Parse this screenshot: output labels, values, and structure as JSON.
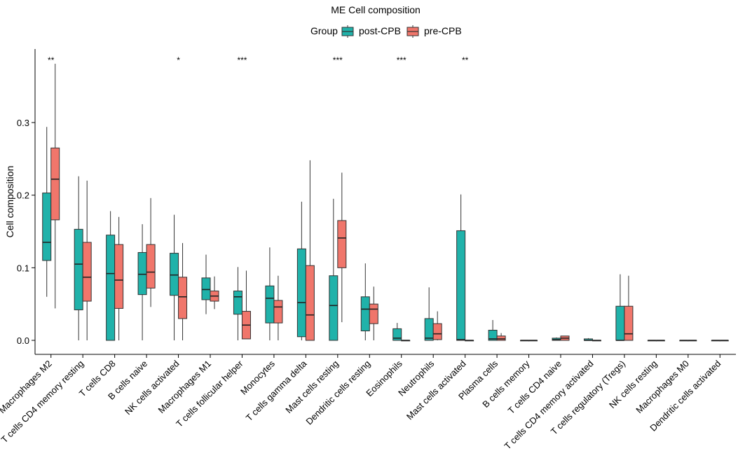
{
  "chart_data": {
    "type": "boxplot",
    "title": "ME Cell composition",
    "xlabel": "",
    "ylabel": "Cell composition",
    "ylim": [
      -0.02,
      0.4
    ],
    "yticks": [
      0.0,
      0.1,
      0.2,
      0.3
    ],
    "ytick_labels": [
      "0.0",
      "0.1",
      "0.2",
      "0.3"
    ],
    "legend": {
      "title": "Group",
      "position": "top",
      "entries": [
        {
          "name": "post-CPB",
          "color": "#20B2AA"
        },
        {
          "name": "pre-CPB",
          "color": "#F0766B"
        }
      ]
    },
    "categories": [
      "Macrophages M2",
      "T cells CD4 memory resting",
      "T cells CD8",
      "B cells naive",
      "NK cells activated",
      "Macrophages M1",
      "T cells follicular helper",
      "Monocytes",
      "T cells gamma delta",
      "Mast cells resting",
      "Dendritic cells resting",
      "Eosinophils",
      "Neutrophils",
      "Mast cells activated",
      "Plasma cells",
      "B cells memory",
      "T cells CD4 naive",
      "T cells CD4 memory activated",
      "T cells regulatory (Tregs)",
      "NK cells resting",
      "Macrophages M0",
      "Dendritic cells activated"
    ],
    "significance": [
      "**",
      "",
      "",
      "",
      "*",
      "",
      "***",
      "",
      "",
      "***",
      "",
      "***",
      "",
      "**",
      "",
      "",
      "",
      "",
      "",
      "",
      "",
      ""
    ],
    "series": [
      {
        "name": "post-CPB",
        "color": "#20B2AA",
        "boxes": [
          {
            "min": 0.06,
            "q1": 0.11,
            "median": 0.135,
            "q3": 0.203,
            "max": 0.294
          },
          {
            "min": 0.0,
            "q1": 0.042,
            "median": 0.105,
            "q3": 0.153,
            "max": 0.226
          },
          {
            "min": 0.0,
            "q1": 0.0,
            "median": 0.092,
            "q3": 0.145,
            "max": 0.178
          },
          {
            "min": 0.0,
            "q1": 0.063,
            "median": 0.091,
            "q3": 0.121,
            "max": 0.16
          },
          {
            "min": 0.0,
            "q1": 0.062,
            "median": 0.09,
            "q3": 0.12,
            "max": 0.173
          },
          {
            "min": 0.036,
            "q1": 0.056,
            "median": 0.07,
            "q3": 0.086,
            "max": 0.118
          },
          {
            "min": 0.0,
            "q1": 0.036,
            "median": 0.06,
            "q3": 0.068,
            "max": 0.101
          },
          {
            "min": 0.0,
            "q1": 0.024,
            "median": 0.058,
            "q3": 0.075,
            "max": 0.128
          },
          {
            "min": 0.0,
            "q1": 0.005,
            "median": 0.052,
            "q3": 0.126,
            "max": 0.191
          },
          {
            "min": 0.0,
            "q1": 0.0,
            "median": 0.048,
            "q3": 0.089,
            "max": 0.195
          },
          {
            "min": 0.0,
            "q1": 0.013,
            "median": 0.043,
            "q3": 0.06,
            "max": 0.106
          },
          {
            "min": 0.0,
            "q1": 0.0,
            "median": 0.003,
            "q3": 0.016,
            "max": 0.024
          },
          {
            "min": 0.0,
            "q1": 0.0,
            "median": 0.003,
            "q3": 0.03,
            "max": 0.073
          },
          {
            "min": 0.0,
            "q1": 0.0,
            "median": 0.001,
            "q3": 0.151,
            "max": 0.201
          },
          {
            "min": 0.0,
            "q1": 0.0,
            "median": 0.002,
            "q3": 0.014,
            "max": 0.028
          },
          {
            "min": 0.0,
            "q1": 0.0,
            "median": 0.0,
            "q3": 0.0,
            "max": 0.0
          },
          {
            "min": 0.0,
            "q1": 0.0,
            "median": 0.001,
            "q3": 0.003,
            "max": 0.004
          },
          {
            "min": 0.0,
            "q1": 0.0,
            "median": 0.0,
            "q3": 0.002,
            "max": 0.003
          },
          {
            "min": 0.0,
            "q1": 0.0,
            "median": 0.0,
            "q3": 0.047,
            "max": 0.091
          },
          {
            "min": 0.0,
            "q1": 0.0,
            "median": 0.0,
            "q3": 0.0,
            "max": 0.0
          },
          {
            "min": 0.0,
            "q1": 0.0,
            "median": 0.0,
            "q3": 0.0,
            "max": 0.0
          },
          {
            "min": 0.0,
            "q1": 0.0,
            "median": 0.0,
            "q3": 0.0,
            "max": 0.0
          }
        ]
      },
      {
        "name": "pre-CPB",
        "color": "#F0766B",
        "boxes": [
          {
            "min": 0.044,
            "q1": 0.166,
            "median": 0.222,
            "q3": 0.265,
            "max": 0.381
          },
          {
            "min": 0.0,
            "q1": 0.054,
            "median": 0.087,
            "q3": 0.135,
            "max": 0.22
          },
          {
            "min": 0.0,
            "q1": 0.044,
            "median": 0.083,
            "q3": 0.132,
            "max": 0.17
          },
          {
            "min": 0.046,
            "q1": 0.072,
            "median": 0.094,
            "q3": 0.132,
            "max": 0.196
          },
          {
            "min": 0.0,
            "q1": 0.03,
            "median": 0.06,
            "q3": 0.087,
            "max": 0.134
          },
          {
            "min": 0.043,
            "q1": 0.054,
            "median": 0.061,
            "q3": 0.068,
            "max": 0.088
          },
          {
            "min": 0.002,
            "q1": 0.002,
            "median": 0.021,
            "q3": 0.04,
            "max": 0.096
          },
          {
            "min": 0.0,
            "q1": 0.024,
            "median": 0.046,
            "q3": 0.055,
            "max": 0.089
          },
          {
            "min": 0.0,
            "q1": 0.0,
            "median": 0.035,
            "q3": 0.103,
            "max": 0.248
          },
          {
            "min": 0.025,
            "q1": 0.1,
            "median": 0.141,
            "q3": 0.165,
            "max": 0.231
          },
          {
            "min": 0.0,
            "q1": 0.023,
            "median": 0.043,
            "q3": 0.05,
            "max": 0.074
          },
          {
            "min": 0.0,
            "q1": 0.0,
            "median": 0.0,
            "q3": 0.0,
            "max": 0.0
          },
          {
            "min": 0.0,
            "q1": 0.001,
            "median": 0.009,
            "q3": 0.023,
            "max": 0.04
          },
          {
            "min": 0.0,
            "q1": 0.0,
            "median": 0.0,
            "q3": 0.0,
            "max": 0.0
          },
          {
            "min": 0.0,
            "q1": 0.0,
            "median": 0.002,
            "q3": 0.006,
            "max": 0.01
          },
          {
            "min": 0.0,
            "q1": 0.0,
            "median": 0.0,
            "q3": 0.0,
            "max": 0.0
          },
          {
            "min": 0.0,
            "q1": 0.0,
            "median": 0.003,
            "q3": 0.006,
            "max": 0.006
          },
          {
            "min": 0.0,
            "q1": 0.0,
            "median": 0.0,
            "q3": 0.0,
            "max": 0.0
          },
          {
            "min": 0.0,
            "q1": 0.0,
            "median": 0.009,
            "q3": 0.047,
            "max": 0.089
          },
          {
            "min": 0.0,
            "q1": 0.0,
            "median": 0.0,
            "q3": 0.0,
            "max": 0.0
          },
          {
            "min": 0.0,
            "q1": 0.0,
            "median": 0.0,
            "q3": 0.0,
            "max": 0.0
          },
          {
            "min": 0.0,
            "q1": 0.0,
            "median": 0.0,
            "q3": 0.0,
            "max": 0.0
          }
        ]
      }
    ]
  }
}
